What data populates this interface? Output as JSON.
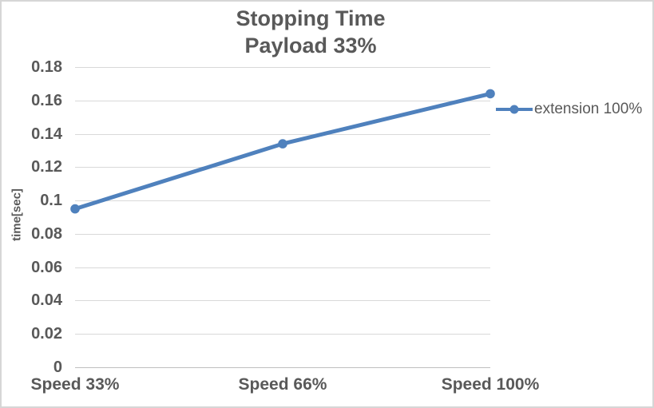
{
  "chart_data": {
    "type": "line",
    "title": "Stopping Time",
    "subtitle": "Payload 33%",
    "categories": [
      "Speed 33%",
      "Speed 66%",
      "Speed 100%"
    ],
    "series": [
      {
        "name": "extension 100%",
        "values": [
          0.095,
          0.134,
          0.164
        ],
        "color": "#4F81BD"
      }
    ],
    "xlabel": "",
    "ylabel": "time[sec]",
    "ylim": [
      0,
      0.18
    ],
    "ytick_step": 0.02,
    "grid": true,
    "legend_position": "right"
  },
  "style": {
    "text_color": "#595959",
    "gridline_color": "#d9d9d9",
    "axis_line_color": "#bfbfbf",
    "background": "#ffffff",
    "border_color": "#d6d6d6",
    "series_color": "#4F81BD"
  }
}
